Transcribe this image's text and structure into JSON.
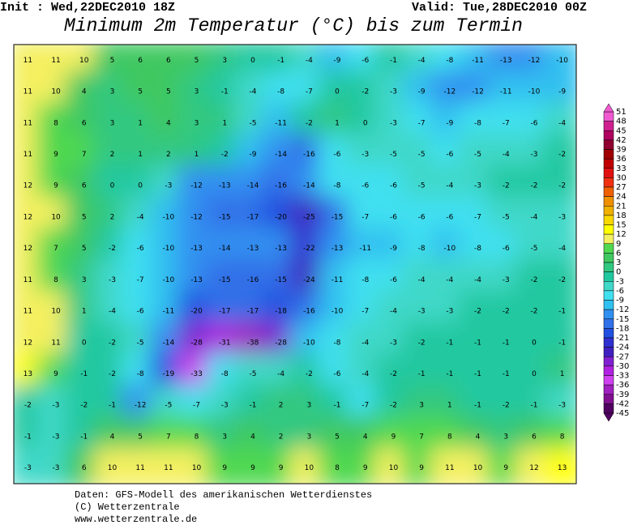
{
  "header": {
    "init": "Init : Wed,22DEC2010 18Z",
    "valid": "Valid: Tue,28DEC2010 00Z",
    "title": "Minimum 2m Temperatur (°C) bis zum Termin"
  },
  "colorbar": {
    "levels": [
      51,
      48,
      45,
      42,
      39,
      36,
      33,
      30,
      27,
      24,
      21,
      18,
      15,
      12,
      9,
      6,
      3,
      0,
      -3,
      -6,
      -9,
      -12,
      -15,
      -18,
      -21,
      -24,
      -27,
      -30,
      -33,
      -36,
      -39,
      -42,
      -45
    ],
    "colors": [
      "#f05ad0",
      "#d02090",
      "#b00060",
      "#900030",
      "#a00000",
      "#c00000",
      "#e01010",
      "#f03010",
      "#f06000",
      "#f09000",
      "#f0b000",
      "#f8d800",
      "#ffff00",
      "#f4f060",
      "#50d850",
      "#40c860",
      "#30c880",
      "#20c8a0",
      "#40d8c8",
      "#40e0f0",
      "#30c0f0",
      "#3090f0",
      "#3070e8",
      "#2050e0",
      "#3030d0",
      "#4020c0",
      "#8020d0",
      "#b020e0",
      "#d040f0",
      "#a020c0",
      "#801090",
      "#500060"
    ]
  },
  "map": {
    "rows": [
      [
        11,
        11,
        10,
        5,
        6,
        6,
        5,
        3,
        0,
        -1,
        -4,
        -9,
        -6,
        -1,
        -4,
        -8,
        -11,
        -13,
        -12,
        -10
      ],
      [
        11,
        10,
        4,
        3,
        5,
        5,
        3,
        -1,
        -4,
        -8,
        -7,
        0,
        -2,
        -3,
        -9,
        -12,
        -12,
        -11,
        -10,
        -9
      ],
      [
        11,
        8,
        6,
        3,
        1,
        4,
        3,
        1,
        -5,
        -11,
        -2,
        1,
        0,
        -3,
        -7,
        -9,
        -8,
        -7,
        -6,
        -4
      ],
      [
        11,
        9,
        7,
        2,
        1,
        2,
        1,
        -2,
        -9,
        -14,
        -16,
        -6,
        -3,
        -5,
        -5,
        -6,
        -5,
        -4,
        -3,
        -2
      ],
      [
        12,
        9,
        6,
        0,
        0,
        -3,
        -12,
        -13,
        -14,
        -16,
        -14,
        -8,
        -6,
        -6,
        -5,
        -4,
        -3,
        -2,
        -2,
        -2
      ],
      [
        12,
        10,
        5,
        2,
        -4,
        -10,
        -12,
        -15,
        -17,
        -20,
        -25,
        -15,
        -7,
        -6,
        -6,
        -6,
        -7,
        -5,
        -4,
        -3
      ],
      [
        12,
        7,
        5,
        -2,
        -6,
        -10,
        -13,
        -14,
        -13,
        -13,
        -22,
        -13,
        -11,
        -9,
        -8,
        -10,
        -8,
        -6,
        -5,
        -4
      ],
      [
        11,
        8,
        3,
        -3,
        -7,
        -10,
        -13,
        -15,
        -16,
        -15,
        -24,
        -11,
        -8,
        -6,
        -4,
        -4,
        -4,
        -3,
        -2,
        -2
      ],
      [
        11,
        10,
        1,
        -4,
        -6,
        -11,
        -20,
        -17,
        -17,
        -18,
        -16,
        -10,
        -7,
        -4,
        -3,
        -3,
        -2,
        -2,
        -2,
        -1
      ],
      [
        12,
        11,
        0,
        -2,
        -5,
        -14,
        -28,
        -31,
        -38,
        -28,
        -10,
        -8,
        -4,
        -3,
        -2,
        -1,
        -1,
        -1,
        0,
        -1
      ],
      [
        13,
        9,
        -1,
        -2,
        -8,
        -19,
        -33,
        -8,
        -5,
        -4,
        -2,
        -6,
        -4,
        -2,
        -1,
        -1,
        -1,
        -1,
        0,
        1
      ],
      [
        -2,
        -3,
        -2,
        -1,
        -12,
        -5,
        -7,
        -3,
        -1,
        2,
        3,
        -1,
        -7,
        -2,
        3,
        1,
        -1,
        -2,
        -1,
        -3
      ],
      [
        -1,
        -3,
        -1,
        4,
        5,
        7,
        8,
        3,
        4,
        2,
        3,
        5,
        4,
        9,
        7,
        8,
        4,
        3,
        6,
        8
      ],
      [
        -3,
        -3,
        6,
        10,
        11,
        11,
        10,
        9,
        9,
        9,
        10,
        8,
        9,
        10,
        9,
        11,
        10,
        9,
        12,
        13
      ]
    ]
  },
  "footer": [
    "Daten: GFS-Modell des amerikanischen Wetterdienstes",
    "(C) Wetterzentrale",
    "www.wetterzentrale.de"
  ]
}
